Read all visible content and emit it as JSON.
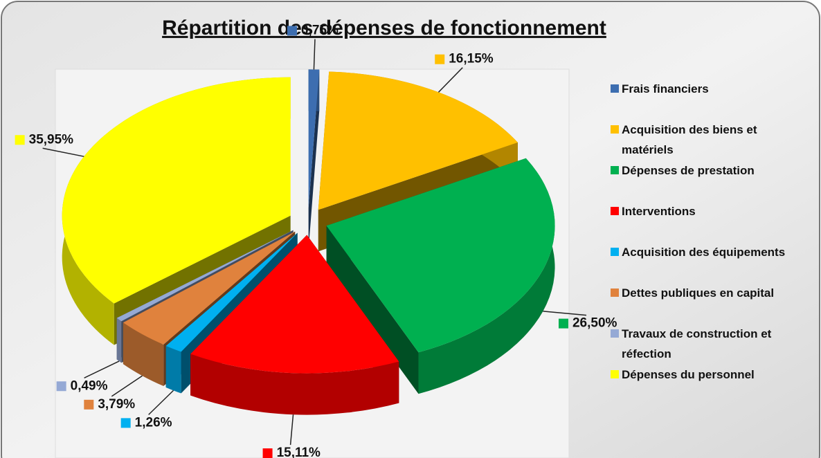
{
  "chart_data": {
    "type": "pie",
    "title": "Répartition des dépenses de fonctionnement",
    "categories": [
      "Frais financiers",
      "Acquisition des biens et matériels",
      "Dépenses de prestation",
      "Interventions",
      "Acquisition des équipements",
      "Dettes publiques en capital",
      "Travaux de construction et réfection",
      "Dépenses du personnel"
    ],
    "values": [
      0.75,
      16.15,
      26.5,
      15.11,
      1.26,
      3.79,
      0.49,
      35.95
    ],
    "value_labels": [
      "0,75%",
      "16,15%",
      "26,50%",
      "15,11%",
      "1,26%",
      "3,79%",
      "0,49%",
      "35,95%"
    ],
    "colors": [
      "#3d6eb0",
      "#ffc000",
      "#00b050",
      "#ff0000",
      "#00b0f0",
      "#e0823d",
      "#95a9d5",
      "#ffff00"
    ],
    "legend": "right"
  }
}
